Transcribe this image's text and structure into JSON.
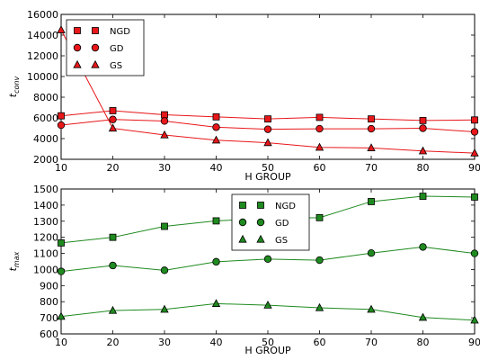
{
  "chart_data": [
    {
      "type": "line",
      "ylabel_main": "t",
      "ylabel_sub": "conv",
      "xlabel": "H GROUP",
      "x": [
        10,
        20,
        30,
        40,
        50,
        60,
        70,
        80,
        90
      ],
      "xlim": [
        10,
        90
      ],
      "ylim": [
        2000,
        16000
      ],
      "yticks": [
        2000,
        4000,
        6000,
        8000,
        10000,
        12000,
        14000,
        16000
      ],
      "xticks": [
        10,
        20,
        30,
        40,
        50,
        60,
        70,
        80,
        90
      ],
      "color": "#e8171a",
      "legend_position": "upper-left",
      "series": [
        {
          "name": "NGD",
          "marker": "square",
          "values": [
            6200,
            6700,
            6300,
            6100,
            5900,
            6050,
            5900,
            5750,
            5800
          ]
        },
        {
          "name": "GD",
          "marker": "circle",
          "values": [
            5300,
            5850,
            5700,
            5100,
            4900,
            4950,
            4950,
            5000,
            4650
          ]
        },
        {
          "name": "GS",
          "marker": "triangle",
          "values": [
            14500,
            5000,
            4350,
            3850,
            3600,
            3150,
            3100,
            2800,
            2600
          ]
        }
      ]
    },
    {
      "type": "line",
      "ylabel_main": "t",
      "ylabel_sub": "max",
      "xlabel": "H GROUP",
      "x": [
        10,
        20,
        30,
        40,
        50,
        60,
        70,
        80,
        90
      ],
      "xlim": [
        10,
        90
      ],
      "ylim": [
        600,
        1500
      ],
      "yticks": [
        600,
        700,
        800,
        900,
        1000,
        1100,
        1200,
        1300,
        1400,
        1500
      ],
      "xticks": [
        10,
        20,
        30,
        40,
        50,
        60,
        70,
        80,
        90
      ],
      "color": "#1f8a1f",
      "legend_position": "upper-center",
      "series": [
        {
          "name": "NGD",
          "marker": "square",
          "values": [
            1165,
            1200,
            1268,
            1302,
            1318,
            1322,
            1422,
            1455,
            1450
          ]
        },
        {
          "name": "GD",
          "marker": "circle",
          "values": [
            988,
            1025,
            995,
            1048,
            1065,
            1058,
            1102,
            1140,
            1100
          ]
        },
        {
          "name": "GS",
          "marker": "triangle",
          "values": [
            708,
            745,
            752,
            788,
            778,
            762,
            752,
            702,
            685
          ]
        }
      ]
    }
  ]
}
